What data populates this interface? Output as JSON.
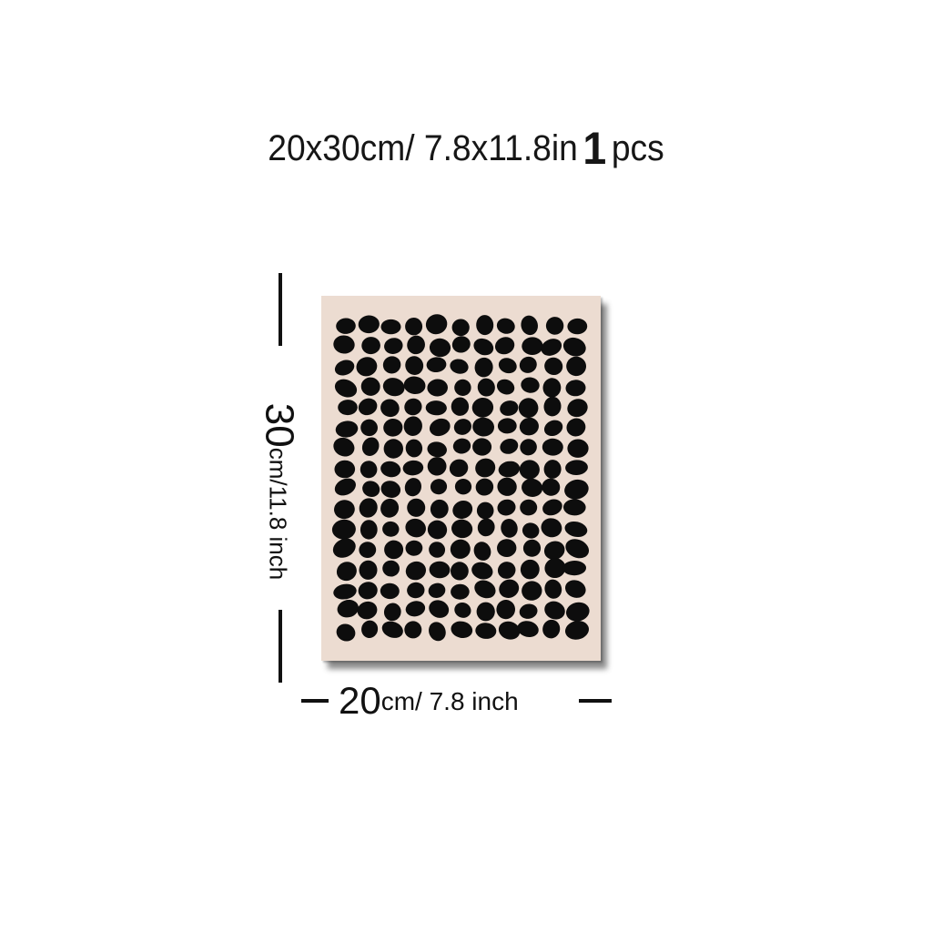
{
  "product": {
    "size_label": "20x30cm/ 7.8x11.8in",
    "qty_number": "1",
    "qty_unit": "pcs"
  },
  "height_label": {
    "number": "30",
    "text": "cm/11.8 inch"
  },
  "width_label": {
    "number": "20",
    "text": "cm/ 7.8 inch"
  },
  "colors": {
    "poster_background": "#ecdcd1",
    "dots": "#0d0d0d",
    "text": "#111111"
  },
  "artwork": {
    "grid_columns": 11,
    "grid_rows": 16
  }
}
